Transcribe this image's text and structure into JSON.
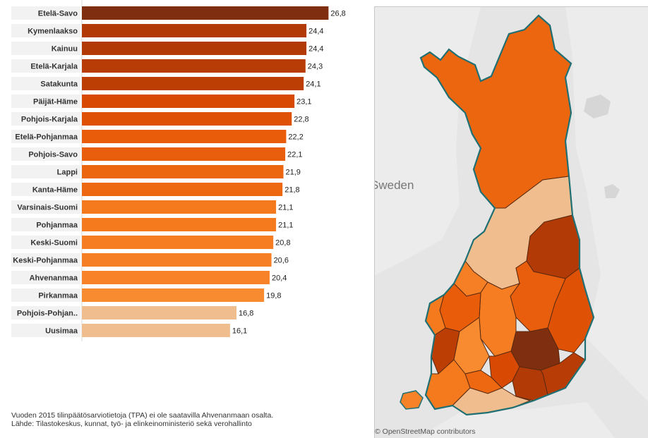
{
  "chart_data": {
    "type": "bar",
    "orientation": "horizontal",
    "categories": [
      "Etelä-Savo",
      "Kymenlaakso",
      "Kainuu",
      "Etelä-Karjala",
      "Satakunta",
      "Päijät-Häme",
      "Pohjois-Karjala",
      "Etelä-Pohjanmaa",
      "Pohjois-Savo",
      "Lappi",
      "Kanta-Häme",
      "Varsinais-Suomi",
      "Pohjanmaa",
      "Keski-Suomi",
      "Keski-Pohjanmaa",
      "Ahvenanmaa",
      "Pirkanmaa",
      "Pohjois-Pohjan..",
      "Uusimaa"
    ],
    "values": [
      26.8,
      24.4,
      24.4,
      24.3,
      24.1,
      23.1,
      22.8,
      22.2,
      22.1,
      21.9,
      21.8,
      21.1,
      21.1,
      20.8,
      20.6,
      20.4,
      19.8,
      16.8,
      16.1
    ],
    "value_labels": [
      "26,8",
      "24,4",
      "24,4",
      "24,3",
      "24,1",
      "23,1",
      "22,8",
      "22,2",
      "22,1",
      "21,9",
      "21,8",
      "21,1",
      "21,1",
      "20,8",
      "20,6",
      "20,4",
      "19,8",
      "16,8",
      "16,1"
    ],
    "bar_colors": [
      "#7f2e10",
      "#b23a07",
      "#b23a07",
      "#b83c05",
      "#bc3e04",
      "#d84a04",
      "#df5205",
      "#e85c0a",
      "#e95e0c",
      "#ec650f",
      "#ed6810",
      "#f57a1e",
      "#f57a1e",
      "#f67d22",
      "#f67f25",
      "#f78228",
      "#f88a30",
      "#f0be8e",
      "#f0be8e"
    ],
    "xlim": [
      0,
      27
    ],
    "grid": false,
    "legend": "none"
  },
  "map": {
    "place_label": "Sweden",
    "credit": "© OpenStreetMap contributors",
    "colors": {
      "background": "#e5e5e5",
      "land": "#e6e6e6",
      "outline": "#1f6f73",
      "lappi": "#ec650f",
      "pohjois_pohjanmaa": "#f0be8e",
      "uusimaa": "#f0be8e",
      "kainuu": "#b23a07",
      "etela_savo": "#7f2e10"
    }
  },
  "footnotes": {
    "line1": "Vuoden 2015 tilinpäätösarviotietoja (TPA) ei ole saatavilla Ahvenanmaan osalta.",
    "line2": "Lähde: Tilastokeskus, kunnat, työ- ja elinkeinoministeriö sekä verohallinto"
  }
}
